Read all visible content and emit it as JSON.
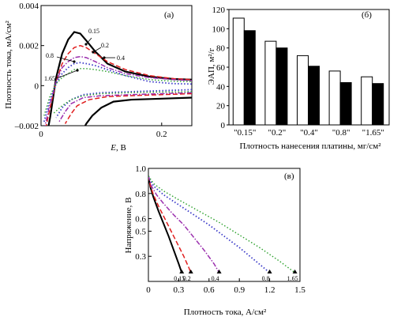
{
  "chart_data": [
    {
      "panel": "(а)",
      "type": "line",
      "xlabel_italic": "E",
      "xlabel_rest": ", В",
      "ylabel": "Плотность тока, мА/см²",
      "xlim": [
        0,
        0.25
      ],
      "ylim": [
        -0.002,
        0.004
      ],
      "xticks": [
        0,
        0.2
      ],
      "xtick_labels": [
        "0",
        "0.2"
      ],
      "yticks": [
        -0.002,
        0,
        0.002,
        0.004
      ],
      "ytick_labels": [
        "–0.002",
        "0",
        "0.002",
        "0.004"
      ],
      "series": [
        {
          "name": "0.15",
          "style": "solid",
          "color": "#000000",
          "width": 2.2,
          "x": [
            0.005,
            0.015,
            0.025,
            0.035,
            0.045,
            0.055,
            0.065,
            0.075,
            0.09,
            0.11,
            0.14,
            0.18,
            0.22,
            0.25
          ],
          "y": [
            -0.0032,
            -0.0016,
            0.0004,
            0.0016,
            0.0023,
            0.00268,
            0.0026,
            0.00225,
            0.0017,
            0.0011,
            0.0007,
            0.00045,
            0.00033,
            0.0003
          ],
          "back_x": [
            0.25,
            0.2,
            0.15,
            0.12,
            0.1,
            0.085,
            0.075,
            0.068
          ],
          "back_y": [
            -0.0006,
            -0.00065,
            -0.0007,
            -0.0008,
            -0.0011,
            -0.0015,
            -0.0019,
            -0.0023
          ]
        },
        {
          "name": "0.2",
          "style": "dashed",
          "color": "#e01e1e",
          "width": 1.5,
          "x": [
            0.005,
            0.015,
            0.025,
            0.035,
            0.045,
            0.055,
            0.065,
            0.075,
            0.09,
            0.11,
            0.14,
            0.18,
            0.22,
            0.25
          ],
          "y": [
            -0.0025,
            -0.0011,
            0.0002,
            0.0011,
            0.0016,
            0.0019,
            0.002,
            0.0019,
            0.0016,
            0.0012,
            0.0008,
            0.0005,
            0.00035,
            0.0003
          ],
          "back_x": [
            0.25,
            0.2,
            0.15,
            0.11,
            0.08,
            0.06,
            0.05,
            0.04
          ],
          "back_y": [
            -0.0004,
            -0.00045,
            -0.0005,
            -0.00055,
            -0.0007,
            -0.001,
            -0.0014,
            -0.0019
          ]
        },
        {
          "name": "0.4",
          "style": "dashdot",
          "color": "#9b2fae",
          "width": 1.5,
          "x": [
            0.005,
            0.015,
            0.025,
            0.035,
            0.045,
            0.055,
            0.065,
            0.075,
            0.09,
            0.11,
            0.14,
            0.18,
            0.22,
            0.25
          ],
          "y": [
            -0.0022,
            -0.0009,
            0.0002,
            0.0009,
            0.0012,
            0.0014,
            0.00145,
            0.0014,
            0.0012,
            0.0009,
            0.0006,
            0.0004,
            0.0003,
            0.00025
          ],
          "back_x": [
            0.25,
            0.2,
            0.15,
            0.1,
            0.07,
            0.05,
            0.04,
            0.03
          ],
          "back_y": [
            -0.00035,
            -0.0004,
            -0.00045,
            -0.0005,
            -0.0006,
            -0.0009,
            -0.0013,
            -0.0018
          ]
        },
        {
          "name": "0.8",
          "style": "dotted",
          "color": "#3a3ac8",
          "width": 1.8,
          "x": [
            0.005,
            0.015,
            0.025,
            0.035,
            0.045,
            0.055,
            0.065,
            0.075,
            0.09,
            0.11,
            0.14,
            0.18,
            0.22,
            0.25
          ],
          "y": [
            -0.0018,
            -0.0007,
            0.0001,
            0.0006,
            0.0009,
            0.0011,
            0.00115,
            0.0011,
            0.001,
            0.0008,
            0.0005,
            0.0002,
            0.0001,
            8e-05
          ],
          "back_x": [
            0.25,
            0.2,
            0.15,
            0.1,
            0.07,
            0.05,
            0.035,
            0.025
          ],
          "back_y": [
            -0.0002,
            -0.00025,
            -0.0003,
            -0.00035,
            -0.00045,
            -0.0007,
            -0.0011,
            -0.0016
          ]
        },
        {
          "name": "1.65",
          "style": "dotted",
          "color": "#2aa02a",
          "width": 1.4,
          "x": [
            0.005,
            0.015,
            0.025,
            0.035,
            0.045,
            0.055,
            0.065,
            0.075,
            0.09,
            0.11,
            0.14,
            0.18,
            0.22,
            0.25
          ],
          "y": [
            -0.0015,
            -0.0005,
            0.0001,
            0.0004,
            0.0006,
            0.0008,
            0.00085,
            0.00085,
            0.0008,
            0.0007,
            0.0005,
            0.0003,
            0.00022,
            0.0002
          ],
          "back_x": [
            0.25,
            0.2,
            0.15,
            0.1,
            0.07,
            0.05,
            0.035,
            0.02
          ],
          "back_y": [
            -0.0003,
            -0.00032,
            -0.00035,
            -0.0004,
            -0.0005,
            -0.0007,
            -0.001,
            -0.0014
          ]
        }
      ],
      "annotations": [
        "0.15",
        "0.2",
        "0.4",
        "0.8",
        "1.65"
      ]
    },
    {
      "panel": "(б)",
      "type": "bar",
      "ylabel": "ЭАП, м²/г",
      "xlabel": "Плотность нанесения платины, мг/см²",
      "categories": [
        "\"0.15\"",
        "\"0.2\"",
        "\"0.4\"",
        "\"0.8\"",
        "\"1.65\""
      ],
      "ylim": [
        0,
        120
      ],
      "yticks": [
        0,
        20,
        40,
        60,
        80,
        100,
        120
      ],
      "series": [
        {
          "name": "",
          "fill": "#ffffff",
          "values": [
            111,
            87,
            72,
            56,
            50
          ]
        },
        {
          "name": "",
          "fill": "#000000",
          "values": [
            98,
            80,
            61,
            44,
            43
          ]
        }
      ]
    },
    {
      "panel": "(в)",
      "type": "line",
      "xlabel": "Плотность тока, А/см²",
      "ylabel": "Напряжение, В",
      "xlim": [
        0,
        1.5
      ],
      "ylim": [
        0.1,
        1.0
      ],
      "xticks": [
        0,
        0.3,
        0.6,
        0.9,
        1.2,
        1.5
      ],
      "xtick_labels": [
        "0",
        "0.3",
        "0.6",
        "0.9",
        "1.2",
        "1.5"
      ],
      "yticks": [
        0.3,
        0.5,
        0.6,
        0.8,
        1.0
      ],
      "ytick_labels": [
        "0.3",
        "0.5",
        "0.6",
        "0.8",
        "1.0"
      ],
      "series": [
        {
          "name": "0.15",
          "style": "solid",
          "color": "#000000",
          "width": 2.0,
          "x": [
            0,
            0.02,
            0.05,
            0.1,
            0.15,
            0.2,
            0.25,
            0.3,
            0.33
          ],
          "y": [
            0.94,
            0.85,
            0.77,
            0.66,
            0.56,
            0.46,
            0.35,
            0.24,
            0.17
          ]
        },
        {
          "name": "0.2",
          "style": "dashed",
          "color": "#e01e1e",
          "width": 1.5,
          "x": [
            0,
            0.02,
            0.05,
            0.1,
            0.15,
            0.2,
            0.25,
            0.3,
            0.35,
            0.4,
            0.42
          ],
          "y": [
            0.94,
            0.86,
            0.79,
            0.7,
            0.62,
            0.54,
            0.46,
            0.38,
            0.3,
            0.21,
            0.17
          ]
        },
        {
          "name": "0.4",
          "style": "dashdot",
          "color": "#9b2fae",
          "width": 1.5,
          "x": [
            0,
            0.03,
            0.08,
            0.15,
            0.25,
            0.35,
            0.45,
            0.55,
            0.65,
            0.7
          ],
          "y": [
            0.94,
            0.86,
            0.79,
            0.72,
            0.63,
            0.55,
            0.45,
            0.35,
            0.24,
            0.17
          ]
        },
        {
          "name": "0.8",
          "style": "dotted",
          "color": "#3a3ac8",
          "width": 1.8,
          "x": [
            0,
            0.05,
            0.15,
            0.3,
            0.45,
            0.6,
            0.75,
            0.9,
            1.05,
            1.2
          ],
          "y": [
            0.94,
            0.86,
            0.79,
            0.71,
            0.63,
            0.55,
            0.46,
            0.37,
            0.27,
            0.17
          ]
        },
        {
          "name": "1.65",
          "style": "dotted",
          "color": "#2aa02a",
          "width": 1.4,
          "x": [
            0,
            0.05,
            0.15,
            0.3,
            0.5,
            0.7,
            0.9,
            1.1,
            1.3,
            1.45
          ],
          "y": [
            0.94,
            0.88,
            0.82,
            0.75,
            0.66,
            0.57,
            0.47,
            0.37,
            0.26,
            0.17
          ]
        }
      ],
      "annotations": [
        "0.15",
        "0.2",
        "0.4",
        "0.8",
        "1.65"
      ]
    }
  ]
}
